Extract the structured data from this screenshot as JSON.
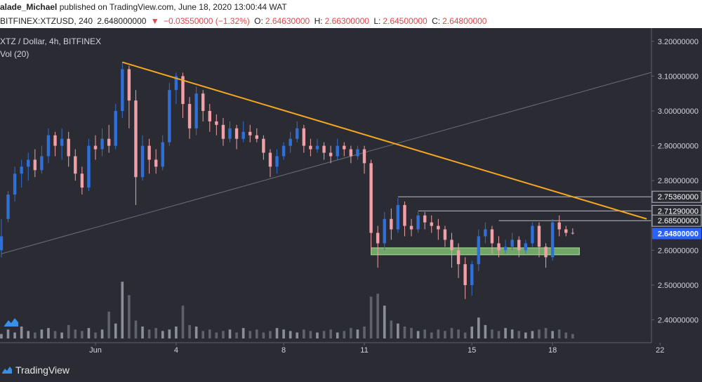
{
  "header": {
    "author": "alade_Michael",
    "published": "published on TradingView.com, June 18, 2020 13:00:44 WAT"
  },
  "symbol_bar": {
    "symbol": "BITFINEX:XTZUSD, 240",
    "last": "2.648000000",
    "arrow": "▼",
    "change": "−0.03550000 (−1.32%)",
    "o_label": "O:",
    "o": "2.64630000",
    "h_label": "H:",
    "h": "2.66300000",
    "l_label": "L:",
    "l": "2.64500000",
    "c_label": "C:",
    "c": "2.64800000"
  },
  "legend": {
    "title": "XTZ / Dollar, 4h, BITFINEX",
    "volume": "Vol (20)"
  },
  "footer": {
    "brand": "TradingView"
  },
  "colors": {
    "background": "#2b2c33",
    "up": "#2f6fd8",
    "down": "#f0a0a6",
    "trendline": "#f5a623",
    "support_zone": "#8ccf7c",
    "level_line": "#b9bcc4",
    "price_tag": "#2962ff"
  },
  "chart_data": {
    "type": "candlestick",
    "title": "XTZ / Dollar, 4h, BITFINEX",
    "ylim": [
      2.35,
      3.22
    ],
    "y_ticks": [
      "3.20000000",
      "3.10000000",
      "3.00000000",
      "2.90000000",
      "2.80000000",
      "2.70000000",
      "2.60000000",
      "2.50000000",
      "2.40000000"
    ],
    "x_ticks": [
      {
        "label": "Jun",
        "x": 1
      },
      {
        "label": "4",
        "x": 4
      },
      {
        "label": "8",
        "x": 8
      },
      {
        "label": "11",
        "x": 11
      },
      {
        "label": "15",
        "x": 15
      },
      {
        "label": "18",
        "x": 18
      },
      {
        "label": "22",
        "x": 22
      }
    ],
    "candles": [
      [
        -2.5,
        2.6,
        2.64,
        2.58,
        2.69
      ],
      [
        -2.25,
        2.69,
        2.76,
        2.68,
        2.77
      ],
      [
        -2.0,
        2.76,
        2.82,
        2.74,
        2.84
      ],
      [
        -1.75,
        2.82,
        2.84,
        2.78,
        2.86
      ],
      [
        -1.5,
        2.84,
        2.86,
        2.8,
        2.88
      ],
      [
        -1.25,
        2.86,
        2.83,
        2.81,
        2.89
      ],
      [
        -1.0,
        2.83,
        2.87,
        2.82,
        2.9
      ],
      [
        -0.75,
        2.87,
        2.93,
        2.85,
        2.95
      ],
      [
        -0.5,
        2.93,
        2.9,
        2.87,
        2.94
      ],
      [
        -0.25,
        2.9,
        2.92,
        2.86,
        2.95
      ],
      [
        0.0,
        2.92,
        2.87,
        2.84,
        2.94
      ],
      [
        0.25,
        2.87,
        2.82,
        2.8,
        2.89
      ],
      [
        0.5,
        2.82,
        2.78,
        2.76,
        2.84
      ],
      [
        0.75,
        2.78,
        2.9,
        2.77,
        2.92
      ],
      [
        1.0,
        2.9,
        2.89,
        2.86,
        2.93
      ],
      [
        1.25,
        2.89,
        2.92,
        2.87,
        2.95
      ],
      [
        1.5,
        2.92,
        2.9,
        2.88,
        2.96
      ],
      [
        1.75,
        2.9,
        3.0,
        2.89,
        3.02
      ],
      [
        2.0,
        3.0,
        3.12,
        2.98,
        3.14
      ],
      [
        2.25,
        3.12,
        3.03,
        2.95,
        3.13
      ],
      [
        2.5,
        3.03,
        2.81,
        2.73,
        3.06
      ],
      [
        2.75,
        2.81,
        2.9,
        2.8,
        2.93
      ],
      [
        3.0,
        2.9,
        2.86,
        2.82,
        2.92
      ],
      [
        3.25,
        2.86,
        2.84,
        2.82,
        2.89
      ],
      [
        3.5,
        2.84,
        2.91,
        2.83,
        2.93
      ],
      [
        3.75,
        2.91,
        3.06,
        2.9,
        3.08
      ],
      [
        4.0,
        3.06,
        3.1,
        3.02,
        3.11
      ],
      [
        4.25,
        3.1,
        3.02,
        2.98,
        3.11
      ],
      [
        4.5,
        3.02,
        2.95,
        2.92,
        3.04
      ],
      [
        4.75,
        2.95,
        3.05,
        2.93,
        3.07
      ],
      [
        5.0,
        3.05,
        3.0,
        2.97,
        3.06
      ],
      [
        5.25,
        3.0,
        2.97,
        2.94,
        3.02
      ],
      [
        5.5,
        2.97,
        2.96,
        2.93,
        2.99
      ],
      [
        5.75,
        2.96,
        2.92,
        2.9,
        2.98
      ],
      [
        6.0,
        2.92,
        2.95,
        2.91,
        2.97
      ],
      [
        6.25,
        2.95,
        2.92,
        2.89,
        2.96
      ],
      [
        6.5,
        2.92,
        2.94,
        2.91,
        2.97
      ],
      [
        6.75,
        2.94,
        2.93,
        2.91,
        2.96
      ],
      [
        7.0,
        2.93,
        2.92,
        2.91,
        2.95
      ],
      [
        7.25,
        2.92,
        2.88,
        2.86,
        2.93
      ],
      [
        7.5,
        2.88,
        2.84,
        2.81,
        2.89
      ],
      [
        7.75,
        2.84,
        2.87,
        2.82,
        2.89
      ],
      [
        8.0,
        2.87,
        2.9,
        2.86,
        2.91
      ],
      [
        8.25,
        2.9,
        2.92,
        2.88,
        2.94
      ],
      [
        8.5,
        2.92,
        2.95,
        2.91,
        2.97
      ],
      [
        8.75,
        2.95,
        2.9,
        2.88,
        2.96
      ],
      [
        9.0,
        2.9,
        2.89,
        2.87,
        2.92
      ],
      [
        9.25,
        2.89,
        2.9,
        2.88,
        2.92
      ],
      [
        9.5,
        2.9,
        2.88,
        2.86,
        2.91
      ],
      [
        9.75,
        2.88,
        2.87,
        2.85,
        2.9
      ],
      [
        10.0,
        2.87,
        2.9,
        2.86,
        2.92
      ],
      [
        10.25,
        2.9,
        2.89,
        2.87,
        2.91
      ],
      [
        10.5,
        2.89,
        2.87,
        2.85,
        2.9
      ],
      [
        10.75,
        2.87,
        2.89,
        2.86,
        2.9
      ],
      [
        11.0,
        2.89,
        2.85,
        2.82,
        2.9
      ],
      [
        11.25,
        2.85,
        2.65,
        2.6,
        2.86
      ],
      [
        11.5,
        2.65,
        2.62,
        2.55,
        2.67
      ],
      [
        11.75,
        2.62,
        2.69,
        2.6,
        2.71
      ],
      [
        12.0,
        2.69,
        2.66,
        2.63,
        2.72
      ],
      [
        12.25,
        2.66,
        2.73,
        2.65,
        2.75
      ],
      [
        12.5,
        2.73,
        2.67,
        2.64,
        2.74
      ],
      [
        12.75,
        2.67,
        2.66,
        2.64,
        2.69
      ],
      [
        13.0,
        2.66,
        2.7,
        2.65,
        2.71
      ],
      [
        13.25,
        2.7,
        2.68,
        2.66,
        2.71
      ],
      [
        13.5,
        2.68,
        2.67,
        2.65,
        2.7
      ],
      [
        13.75,
        2.67,
        2.66,
        2.63,
        2.69
      ],
      [
        14.0,
        2.66,
        2.63,
        2.61,
        2.67
      ],
      [
        14.25,
        2.63,
        2.6,
        2.55,
        2.65
      ],
      [
        14.5,
        2.6,
        2.56,
        2.52,
        2.62
      ],
      [
        14.75,
        2.56,
        2.5,
        2.46,
        2.58
      ],
      [
        15.0,
        2.5,
        2.56,
        2.47,
        2.57
      ],
      [
        15.25,
        2.56,
        2.64,
        2.54,
        2.66
      ],
      [
        15.5,
        2.64,
        2.66,
        2.62,
        2.68
      ],
      [
        15.75,
        2.66,
        2.62,
        2.59,
        2.67
      ],
      [
        16.0,
        2.62,
        2.6,
        2.58,
        2.64
      ],
      [
        16.25,
        2.6,
        2.61,
        2.59,
        2.63
      ],
      [
        16.5,
        2.61,
        2.63,
        2.6,
        2.65
      ],
      [
        16.75,
        2.63,
        2.6,
        2.58,
        2.64
      ],
      [
        17.0,
        2.6,
        2.62,
        2.59,
        2.63
      ],
      [
        17.25,
        2.62,
        2.67,
        2.61,
        2.68
      ],
      [
        17.5,
        2.67,
        2.61,
        2.58,
        2.68
      ],
      [
        17.75,
        2.61,
        2.58,
        2.55,
        2.62
      ],
      [
        18.0,
        2.58,
        2.68,
        2.57,
        2.69
      ],
      [
        18.25,
        2.68,
        2.66,
        2.64,
        2.7
      ],
      [
        18.5,
        2.66,
        2.65,
        2.64,
        2.67
      ],
      [
        18.75,
        2.65,
        2.648,
        2.645,
        2.663
      ]
    ],
    "trendline": [
      [
        2.0,
        3.14
      ],
      [
        21.5,
        2.69
      ]
    ],
    "channel_line": [
      [
        -2.5,
        2.59
      ],
      [
        23.5,
        3.15
      ]
    ],
    "support_zone": {
      "x": [
        11.25,
        19.0
      ],
      "y": [
        2.587,
        2.607
      ]
    },
    "levels": [
      {
        "value": 2.7536,
        "label": "2.75360000",
        "x_start": 12.25
      },
      {
        "value": 2.7129,
        "label": "2.71290000",
        "x_start": 13.0
      },
      {
        "value": 2.685,
        "label": "2.68500000",
        "x_start": 16.0
      }
    ],
    "last_price": {
      "value": 2.648,
      "label": "2.64800000"
    },
    "volume": [
      3,
      6,
      4,
      8,
      5,
      4,
      6,
      7,
      5,
      4,
      9,
      6,
      5,
      7,
      4,
      6,
      18,
      10,
      38,
      29,
      12,
      8,
      6,
      7,
      5,
      6,
      8,
      22,
      9,
      8,
      5,
      6,
      4,
      5,
      6,
      4,
      7,
      5,
      6,
      4,
      5,
      7,
      6,
      5,
      4,
      6,
      5,
      4,
      5,
      6,
      4,
      5,
      7,
      6,
      8,
      28,
      30,
      22,
      12,
      10,
      8,
      7,
      5,
      6,
      4,
      6,
      5,
      7,
      6,
      4,
      8,
      14,
      9,
      6,
      5,
      7,
      6,
      5,
      4,
      5,
      6,
      7,
      5,
      6,
      4,
      3
    ]
  }
}
